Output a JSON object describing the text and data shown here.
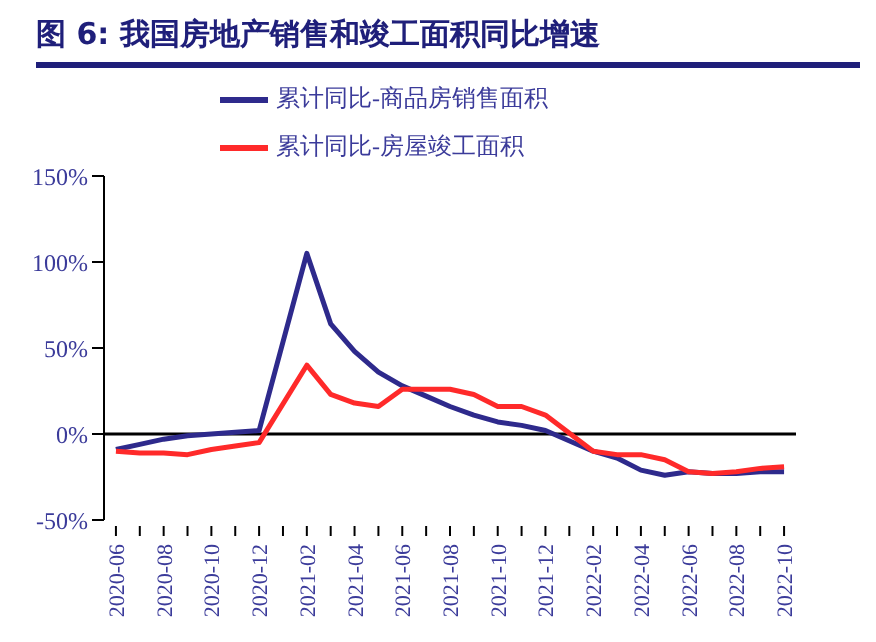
{
  "chart_data": {
    "type": "line",
    "title": "图 6:  我国房地产销售和竣工面积同比增速",
    "categories": [
      "2020-06",
      null,
      "2020-08",
      null,
      "2020-10",
      null,
      "2020-12",
      null,
      "2021-02",
      null,
      "2021-04",
      null,
      "2021-06",
      null,
      "2021-08",
      null,
      "2021-10",
      null,
      "2021-12",
      null,
      "2022-02",
      null,
      "2022-04",
      null,
      "2022-06",
      null,
      "2022-08",
      null,
      "2022-10"
    ],
    "series": [
      {
        "name": "累计同比-商品房销售面积",
        "color": "#2e2a8c",
        "values": [
          -9,
          -6,
          -3,
          -1,
          0,
          1,
          2,
          null,
          105,
          64,
          48,
          36,
          28,
          22,
          16,
          11,
          7,
          5,
          2,
          null,
          -10,
          -14,
          -21,
          -24,
          -22,
          -23,
          -23,
          -22,
          -22
        ]
      },
      {
        "name": "累计同比-房屋竣工面积",
        "color": "#ff2a2a",
        "values": [
          -10,
          -11,
          -11,
          -12,
          -9,
          -7,
          -5,
          null,
          40,
          23,
          18,
          16,
          26,
          26,
          26,
          23,
          16,
          16,
          11,
          null,
          -10,
          -12,
          -12,
          -15,
          -22,
          -23,
          -22,
          -20,
          -19
        ]
      }
    ],
    "ylim": [
      -50,
      150
    ],
    "yticks": [
      {
        "value": -50,
        "label": "-50%"
      },
      {
        "value": 0,
        "label": "0%"
      },
      {
        "value": 50,
        "label": "50%"
      },
      {
        "value": 100,
        "label": "100%"
      },
      {
        "value": 150,
        "label": "150%"
      }
    ],
    "ref_lines": [
      {
        "axis": "y",
        "value": 0,
        "color": "#000000"
      }
    ],
    "legend": "top",
    "marker": "none",
    "line_style": "solid"
  }
}
